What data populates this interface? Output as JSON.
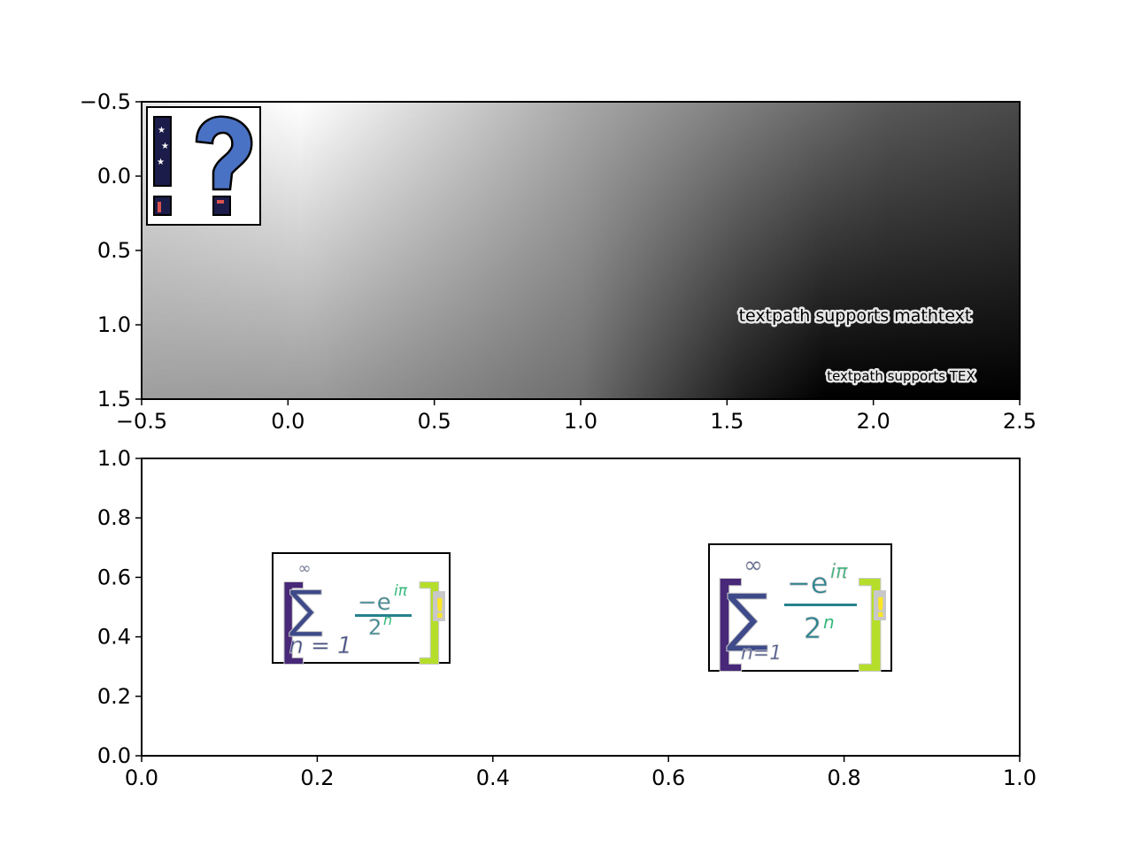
{
  "chart_data": [
    {
      "type": "heatmap",
      "title": "",
      "xlabel": "",
      "ylabel": "",
      "xlim": [
        -0.5,
        2.5
      ],
      "ylim": [
        1.5,
        -0.5
      ],
      "y_inverted": true,
      "colormap": "gray",
      "xticks": [
        {
          "value": -0.5,
          "label": "−0.5"
        },
        {
          "value": 0.0,
          "label": "0.0"
        },
        {
          "value": 0.5,
          "label": "0.5"
        },
        {
          "value": 1.0,
          "label": "1.0"
        },
        {
          "value": 1.5,
          "label": "1.5"
        },
        {
          "value": 2.0,
          "label": "2.0"
        },
        {
          "value": 2.5,
          "label": "2.5"
        }
      ],
      "yticks": [
        {
          "value": -0.5,
          "label": "−0.5"
        },
        {
          "value": 0.0,
          "label": "0.0"
        },
        {
          "value": 0.5,
          "label": "0.5"
        },
        {
          "value": 1.0,
          "label": "1.0"
        },
        {
          "value": 1.5,
          "label": "1.5"
        }
      ],
      "values": [
        [
          0.1,
          0.3,
          0.5
        ],
        [
          0.35,
          0.6,
          0.9
        ]
      ],
      "inset_glyphs": [
        "!",
        "?"
      ],
      "annotations": [
        {
          "text": "textpath supports mathtext",
          "x": 1.82,
          "y": 0.96
        },
        {
          "text": "textpath supports TEX",
          "x": 2.1,
          "y": 1.36
        }
      ]
    },
    {
      "type": "scatter",
      "title": "",
      "xlabel": "",
      "ylabel": "",
      "xlim": [
        0.0,
        1.0
      ],
      "ylim": [
        0.0,
        1.0
      ],
      "xticks": [
        {
          "value": 0.0,
          "label": "0.0"
        },
        {
          "value": 0.2,
          "label": "0.2"
        },
        {
          "value": 0.4,
          "label": "0.4"
        },
        {
          "value": 0.6,
          "label": "0.6"
        },
        {
          "value": 0.8,
          "label": "0.8"
        },
        {
          "value": 1.0,
          "label": "1.0"
        }
      ],
      "yticks": [
        {
          "value": 0.0,
          "label": "0.0"
        },
        {
          "value": 0.2,
          "label": "0.2"
        },
        {
          "value": 0.4,
          "label": "0.4"
        },
        {
          "value": 0.6,
          "label": "0.6"
        },
        {
          "value": 0.8,
          "label": "0.8"
        },
        {
          "value": 1.0,
          "label": "1.0"
        }
      ],
      "annotations": [
        {
          "x": 0.25,
          "y": 0.5,
          "formula": {
            "bracket_left": "[",
            "sum": "∑",
            "upper": "∞",
            "lower": "n = 1",
            "numerator": "−e",
            "exponent": "iπ",
            "denominator": "2",
            "den_exponent": "n",
            "bracket_right": "]",
            "bang": "!"
          }
        },
        {
          "x": 0.75,
          "y": 0.5,
          "formula": {
            "bracket_left": "[",
            "sum": "∑",
            "upper": "∞",
            "lower": "n=1",
            "numerator": "−e",
            "exponent": "iπ",
            "denominator": "2",
            "den_exponent": "n",
            "bracket_right": "]",
            "bang": "!"
          }
        }
      ]
    }
  ],
  "colors": {
    "formula_purple": "#482878",
    "formula_blue": "#3e4a89",
    "formula_teal": "#26828e",
    "formula_green": "#35b779",
    "formula_lime": "#b5de2b",
    "formula_yellow": "#fde725",
    "halo": "#c8c8c8",
    "question_fill": "#4a72c4",
    "bang_fill": "#1c1c4a"
  }
}
